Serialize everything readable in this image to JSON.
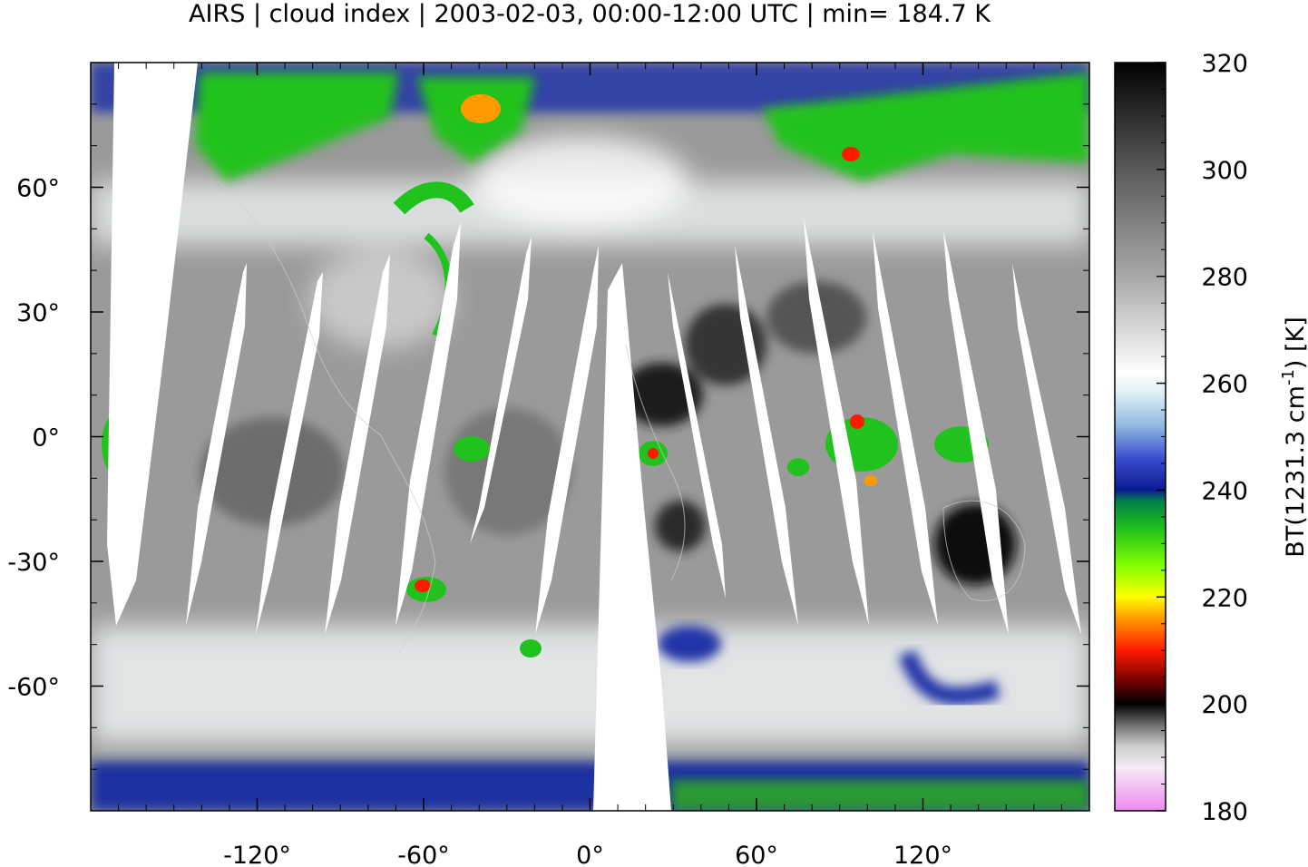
{
  "title": "AIRS | cloud index | 2003-02-03, 00:00-12:00 UTC | min= 184.7 K",
  "map": {
    "projection": "equirectangular",
    "lon_range": [
      -180,
      180
    ],
    "lat_range": [
      -90,
      90
    ],
    "lon_ticks": [
      "-120°",
      "-60°",
      "0°",
      "60°",
      "120°"
    ],
    "lon_tick_values": [
      -120,
      -60,
      0,
      60,
      120
    ],
    "lat_ticks": [
      "60°",
      "30°",
      "0°",
      "-30°",
      "-60°"
    ],
    "lat_tick_values": [
      60,
      30,
      0,
      -30,
      -60
    ],
    "orbit_gap_count": 12,
    "palette": {
      "warm_clear": "#333333",
      "mid": "#9a9a9a",
      "cold_cloud": "#f2f6f8",
      "blue": "#2434a8",
      "green": "#22c21e",
      "gap": "#ffffff"
    }
  },
  "colorbar": {
    "label_main": "BT(1231.3 cm",
    "label_sup": "-1",
    "label_end": ") [K]",
    "range": [
      180,
      320
    ],
    "ticks": [
      "320",
      "300",
      "280",
      "260",
      "240",
      "220",
      "200",
      "180"
    ],
    "tick_values": [
      320,
      300,
      280,
      260,
      240,
      220,
      200,
      180
    ],
    "stops": [
      {
        "value": 180,
        "color": "#ee88ee"
      },
      {
        "value": 188,
        "color": "#f6eaf6"
      },
      {
        "value": 192,
        "color": "#cfcfcf"
      },
      {
        "value": 196,
        "color": "#707070"
      },
      {
        "value": 200,
        "color": "#000000"
      },
      {
        "value": 204,
        "color": "#6e0000"
      },
      {
        "value": 210,
        "color": "#ff1a00"
      },
      {
        "value": 216,
        "color": "#ff9a00"
      },
      {
        "value": 220,
        "color": "#ffff00"
      },
      {
        "value": 226,
        "color": "#7fff00"
      },
      {
        "value": 233,
        "color": "#1fbe1f"
      },
      {
        "value": 238,
        "color": "#00804a"
      },
      {
        "value": 240,
        "color": "#0a1a90"
      },
      {
        "value": 246,
        "color": "#3a4fcf"
      },
      {
        "value": 252,
        "color": "#8fb8e0"
      },
      {
        "value": 258,
        "color": "#ddeef5"
      },
      {
        "value": 262,
        "color": "#ffffff"
      },
      {
        "value": 280,
        "color": "#a8a8a8"
      },
      {
        "value": 300,
        "color": "#5a5a5a"
      },
      {
        "value": 320,
        "color": "#000000"
      }
    ]
  }
}
